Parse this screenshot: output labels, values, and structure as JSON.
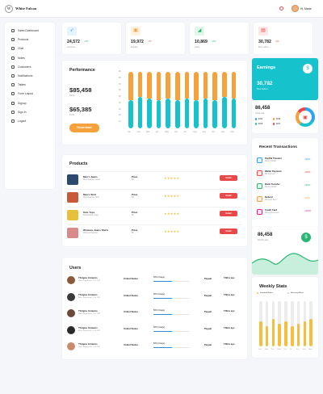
{
  "app": {
    "brand": "White Falcon",
    "logo_letter": "W",
    "user": "Hi, Maria"
  },
  "sidebar": {
    "items": [
      {
        "label": "Sales Dashboard"
      },
      {
        "label": "Products"
      },
      {
        "label": "Chat"
      },
      {
        "label": "Notes"
      },
      {
        "label": "Customers"
      },
      {
        "label": "Notifications"
      },
      {
        "label": "Tables"
      },
      {
        "label": "Form Layout"
      },
      {
        "label": "Signup"
      },
      {
        "label": "Sign In"
      },
      {
        "label": "Logout"
      }
    ]
  },
  "stats": [
    {
      "value": "24,572",
      "pct": "+3%",
      "label": "Customer",
      "icon": "rocket-icon",
      "color": "#2ea3f2",
      "bg": "#e3f3ff",
      "glyph": "➶"
    },
    {
      "value": "19,972",
      "pct": "-7%",
      "label": "Supplier",
      "icon": "briefcase-icon",
      "color": "#f6a23c",
      "bg": "#fff1e0",
      "glyph": "▣"
    },
    {
      "value": "10,869",
      "pct": "+5%",
      "label": "Sales",
      "icon": "chart-icon",
      "color": "#2bb673",
      "bg": "#e2f7ec",
      "glyph": "◢"
    },
    {
      "value": "30,782",
      "pct": "-4%",
      "label": "Best sellers",
      "icon": "bag-icon",
      "color": "#e94848",
      "bg": "#fde6e6",
      "glyph": "▤"
    }
  ],
  "performance": {
    "title": "Performance",
    "values": [
      {
        "amount": "$85,458",
        "label": "Value"
      },
      {
        "amount": "$65,385",
        "label": "Profit"
      }
    ],
    "button": "Download"
  },
  "chart_data": {
    "type": "bar",
    "stacked": true,
    "categories": [
      "Jan",
      "Feb",
      "Mar",
      "Apr",
      "May",
      "Jun",
      "Jul",
      "Aug",
      "Sep",
      "Oct",
      "Nov",
      "Dec"
    ],
    "series": [
      {
        "values": [
          45,
          50,
          48,
          45,
          47,
          45,
          48,
          45,
          47,
          45,
          50,
          48
        ],
        "color": "#16c2cc"
      },
      {
        "values": [
          45,
          40,
          42,
          45,
          43,
          45,
          42,
          45,
          43,
          45,
          40,
          42
        ],
        "color": "#f6a23c"
      }
    ],
    "yticks": [
      "90",
      "80",
      "70",
      "60",
      "50",
      "40",
      "30",
      "20",
      "10",
      ""
    ],
    "ylim": [
      0,
      90
    ]
  },
  "earnings": {
    "title": "Earnings",
    "value": "30,782",
    "label": "Best Sellers",
    "icon": "dollar-icon"
  },
  "donut": {
    "value": "86,458",
    "label": "Yearly sale",
    "legend": [
      {
        "label": "2014",
        "color": "#2ea3f2"
      },
      {
        "label": "2015",
        "color": "#16c2cc"
      },
      {
        "label": "2016",
        "color": "#f6a23c"
      },
      {
        "label": "2017",
        "color": "#e94848"
      }
    ],
    "segments": [
      0.35,
      0.25,
      0.25,
      0.15
    ]
  },
  "products": {
    "title": "Products",
    "rows": [
      {
        "name": "Men's Jeans",
        "sub": "Mens Fashion Jeans",
        "price_label": "Price",
        "price": "$6",
        "button": "Detail",
        "color": "#2c4a6e"
      },
      {
        "name": "Men's Shirt",
        "sub": "Mens Fashion Shirt",
        "price_label": "Price",
        "price": "$6",
        "button": "Detail",
        "color": "#c75a3b"
      },
      {
        "name": "Kids Tops",
        "sub": "Kids Fashion Tops",
        "price_label": "Price",
        "price": "$6",
        "button": "Detail",
        "color": "#e8c13c"
      },
      {
        "name": "Womens Jeans Shirts",
        "sub": "Womens Fashion",
        "price_label": "Price",
        "price": "$6",
        "button": "Detail",
        "color": "#d98b8b"
      }
    ]
  },
  "transactions": {
    "title": "Recent Transactions",
    "rows": [
      {
        "name": "PayPal Transfer",
        "sub": "Money Added",
        "amount": "+$500",
        "color": "#2ea3f2",
        "bg": "#e3f3ff"
      },
      {
        "name": "Wallet Payment",
        "sub": "Bill Payment",
        "amount": "+$630",
        "color": "#e94848",
        "bg": "#fde6e6"
      },
      {
        "name": "Bank Transfer",
        "sub": "Money Added",
        "amount": "+$200",
        "color": "#2bb673",
        "bg": "#e2f7ec"
      },
      {
        "name": "Refund",
        "sub": "Payment Sent",
        "amount": "-$700",
        "color": "#f6a23c",
        "bg": "#fff1e0"
      },
      {
        "name": "Credit Card",
        "sub": "Money Reversed",
        "amount": "+$0.50",
        "color": "#e91e8c",
        "bg": "#fde3f1"
      }
    ]
  },
  "monthly": {
    "value": "86,458",
    "label": "Monthly sale",
    "icon": "dollar-icon"
  },
  "users": {
    "title": "Users",
    "rows": [
      {
        "name": "Thrigne Annums",
        "sub": "M8a • Registered • 1 Jul 2021",
        "country": "United States",
        "usage": "50% (Usage)",
        "pct": 0.5,
        "plan": "Paypal",
        "time": "5 Mins ago",
        "color": "#8b5a3c"
      },
      {
        "name": "Thrigne Annums",
        "sub": "M8a • Registered • 1 Jul 2021",
        "country": "United States",
        "usage": "50% (Usage)",
        "pct": 0.5,
        "plan": "Paypal",
        "time": "5 Mins ago",
        "color": "#3a3a3a"
      },
      {
        "name": "Thrigne Annums",
        "sub": "M8a • Registered • 1 Jul 2021",
        "country": "United States",
        "usage": "50% (Usage)",
        "pct": 0.5,
        "plan": "Paypal",
        "time": "5 Mins ago",
        "color": "#6b4a3a"
      },
      {
        "name": "Thrigne Annums",
        "sub": "M8a • Registered • 1 Jul 2021",
        "country": "United States",
        "usage": "50% (Usage)",
        "pct": 0.5,
        "plan": "Paypal",
        "time": "5 Mins ago",
        "color": "#2a2a2a"
      },
      {
        "name": "Thrigne Annums",
        "sub": "M8a • Registered • 1 Jul 2021",
        "country": "United States",
        "usage": "50% (Usage)",
        "pct": 0.5,
        "plan": "Paypal",
        "time": "5 Mins ago",
        "color": "#c98b6b"
      }
    ]
  },
  "weekly": {
    "title": "Weekly Stats",
    "legend": [
      {
        "label": "Seasonal Bakes",
        "color": "#f6be3c"
      },
      {
        "label": "Recurring Marks",
        "color": "#cccccc"
      }
    ],
    "days": [
      "Sun",
      "Mon",
      "Tue",
      "Wed",
      "Thu",
      "Fri",
      "Sat",
      "Sun",
      "Mon"
    ],
    "values": [
      0.55,
      0.45,
      0.6,
      0.5,
      0.55,
      0.45,
      0.5,
      0.55,
      0.6
    ]
  }
}
